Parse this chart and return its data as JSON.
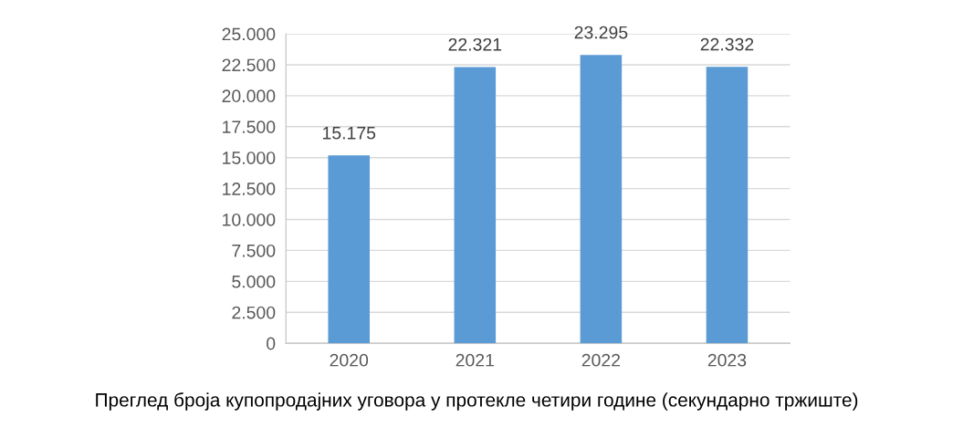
{
  "chart_data": {
    "type": "bar",
    "categories": [
      "2020",
      "2021",
      "2022",
      "2023"
    ],
    "values": [
      15175,
      22321,
      23295,
      22332
    ],
    "value_labels": [
      "15.175",
      "22.321",
      "23.295",
      "22.332"
    ],
    "color": "#5b9bd5",
    "ylim": [
      0,
      25000
    ],
    "yticks": [
      {
        "value": 0,
        "label": "0"
      },
      {
        "value": 2500,
        "label": "2.500"
      },
      {
        "value": 5000,
        "label": "5.000"
      },
      {
        "value": 7500,
        "label": "7.500"
      },
      {
        "value": 10000,
        "label": "10.000"
      },
      {
        "value": 12500,
        "label": "12.500"
      },
      {
        "value": 15000,
        "label": "15.000"
      },
      {
        "value": 17500,
        "label": "17.500"
      },
      {
        "value": 20000,
        "label": "20.000"
      },
      {
        "value": 22500,
        "label": "22.500"
      },
      {
        "value": 25000,
        "label": "25.000"
      }
    ],
    "grid": "y",
    "annotations": [
      "Преглед броја купопродајних уговора у протекле четири године (секундарно тржиште)"
    ]
  }
}
